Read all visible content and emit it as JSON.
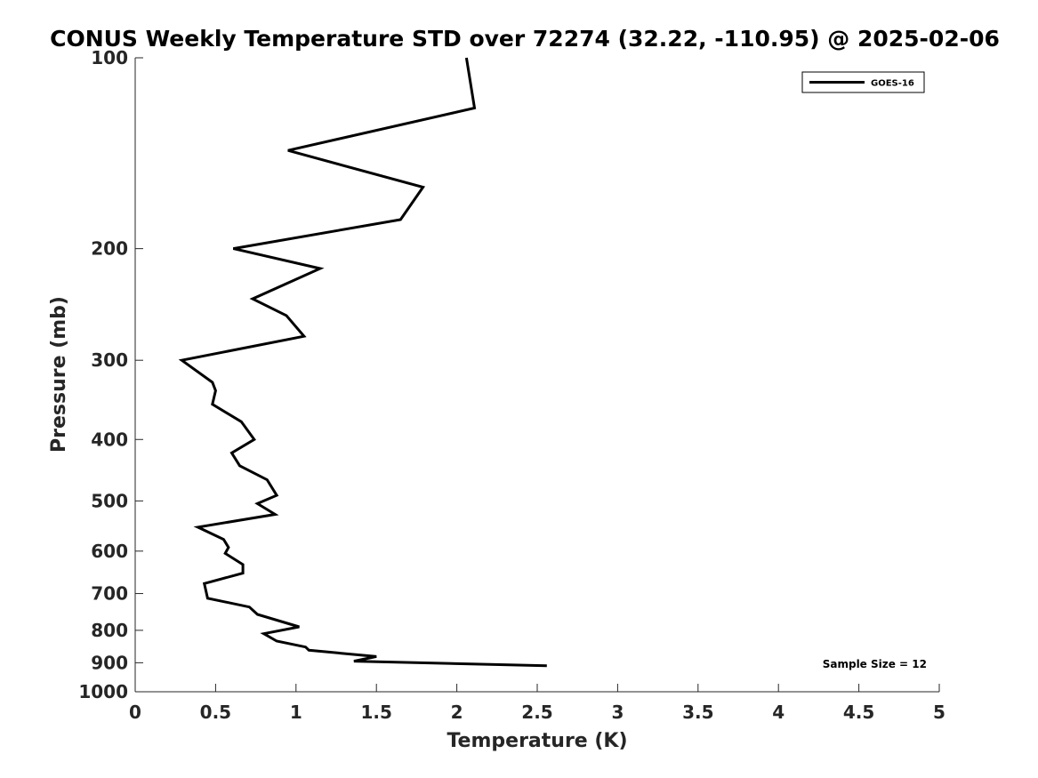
{
  "chart_data": {
    "type": "line",
    "title": "CONUS Weekly Temperature STD over 72274 (32.22, -110.95) @ 2025-02-06",
    "xlabel": "Temperature (K)",
    "ylabel": "Pressure (mb)",
    "xlim": [
      0,
      5
    ],
    "ylim": [
      100,
      1000
    ],
    "y_scale": "log",
    "y_reversed": true,
    "grid": false,
    "legend_position": "top-right",
    "x_ticks": [
      "0",
      "0.5",
      "1",
      "1.5",
      "2",
      "2.5",
      "3",
      "3.5",
      "4",
      "4.5",
      "5"
    ],
    "y_ticks": [
      "100",
      "200",
      "300",
      "400",
      "500",
      "600",
      "700",
      "800",
      "900",
      "1000"
    ],
    "series": [
      {
        "name": "GOES-16",
        "color": "#000000",
        "points": [
          [
            2.06,
            100
          ],
          [
            2.11,
            120
          ],
          [
            0.95,
            140
          ],
          [
            1.79,
            160
          ],
          [
            1.65,
            180
          ],
          [
            0.61,
            200
          ],
          [
            1.15,
            215
          ],
          [
            0.73,
            240
          ],
          [
            0.94,
            255
          ],
          [
            1.05,
            275
          ],
          [
            0.29,
            300
          ],
          [
            0.48,
            325
          ],
          [
            0.5,
            335
          ],
          [
            0.48,
            352
          ],
          [
            0.66,
            375
          ],
          [
            0.74,
            400
          ],
          [
            0.6,
            420
          ],
          [
            0.65,
            440
          ],
          [
            0.82,
            463
          ],
          [
            0.88,
            490
          ],
          [
            0.76,
            505
          ],
          [
            0.87,
            525
          ],
          [
            0.39,
            550
          ],
          [
            0.55,
            575
          ],
          [
            0.58,
            592
          ],
          [
            0.56,
            605
          ],
          [
            0.67,
            630
          ],
          [
            0.67,
            650
          ],
          [
            0.43,
            675
          ],
          [
            0.45,
            712
          ],
          [
            0.71,
            735
          ],
          [
            0.76,
            755
          ],
          [
            1.02,
            790
          ],
          [
            0.8,
            810
          ],
          [
            0.88,
            832
          ],
          [
            1.06,
            850
          ],
          [
            1.08,
            860
          ],
          [
            1.5,
            880
          ],
          [
            1.36,
            895
          ],
          [
            2.56,
            910
          ]
        ]
      }
    ],
    "annotation": "Sample Size = 12"
  }
}
